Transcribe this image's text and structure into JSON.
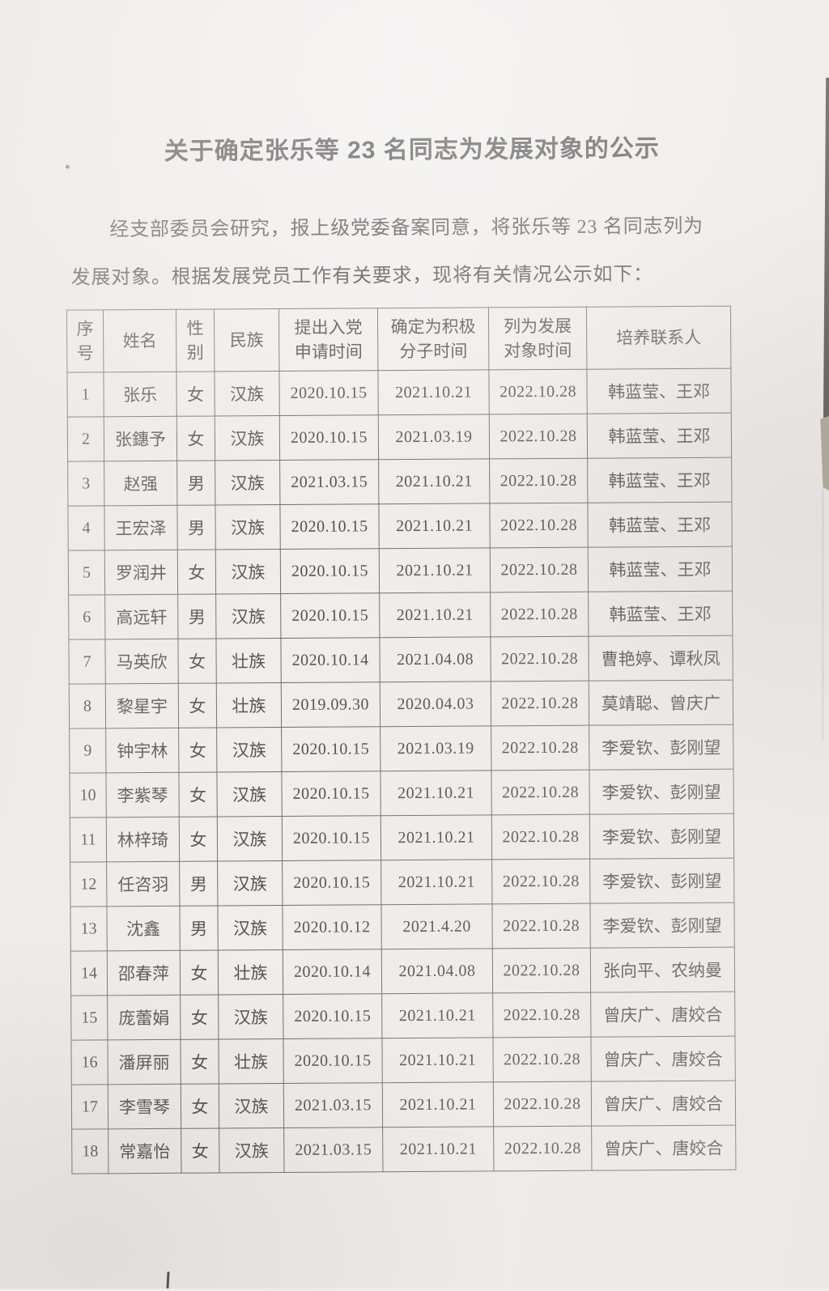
{
  "colors": {
    "paper": "#efecea",
    "ink": "#34302e",
    "table_border": "#5a5450",
    "edge_dark": "#191a1c",
    "edge_tan": "#8e8774"
  },
  "document": {
    "title": "关于确定张乐等 23 名同志为发展对象的公示",
    "paragraph_lines": [
      "经支部委员会研究，报上级党委备案同意，将张乐等 23 名同志列为",
      "发展对象。根据发展党员工作有关要求，现将有关情况公示如下："
    ]
  },
  "table": {
    "columns": [
      {
        "id": "xuhao",
        "lines": [
          "序",
          "号"
        ]
      },
      {
        "id": "xingming",
        "lines": [
          "姓名"
        ]
      },
      {
        "id": "xingbie",
        "lines": [
          "性",
          "别"
        ]
      },
      {
        "id": "minzu",
        "lines": [
          "民族"
        ]
      },
      {
        "id": "shenqing-shijian",
        "lines": [
          "提出入党",
          "申请时间"
        ]
      },
      {
        "id": "jiji-fenzi-shijian",
        "lines": [
          "确定为积极",
          "分子时间"
        ]
      },
      {
        "id": "fazhan-duixiang-shijian",
        "lines": [
          "列为发展",
          "对象时间"
        ]
      },
      {
        "id": "peiyang-lianxiren",
        "lines": [
          "培养联系人"
        ]
      }
    ],
    "rows": [
      [
        "1",
        "张乐",
        "女",
        "汉族",
        "2020.10.15",
        "2021.10.21",
        "2022.10.28",
        "韩蓝莹、王邓"
      ],
      [
        "2",
        "张鏸予",
        "女",
        "汉族",
        "2020.10.15",
        "2021.03.19",
        "2022.10.28",
        "韩蓝莹、王邓"
      ],
      [
        "3",
        "赵强",
        "男",
        "汉族",
        "2021.03.15",
        "2021.10.21",
        "2022.10.28",
        "韩蓝莹、王邓"
      ],
      [
        "4",
        "王宏泽",
        "男",
        "汉族",
        "2020.10.15",
        "2021.10.21",
        "2022.10.28",
        "韩蓝莹、王邓"
      ],
      [
        "5",
        "罗润井",
        "女",
        "汉族",
        "2020.10.15",
        "2021.10.21",
        "2022.10.28",
        "韩蓝莹、王邓"
      ],
      [
        "6",
        "高远轩",
        "男",
        "汉族",
        "2020.10.15",
        "2021.10.21",
        "2022.10.28",
        "韩蓝莹、王邓"
      ],
      [
        "7",
        "马英欣",
        "女",
        "壮族",
        "2020.10.14",
        "2021.04.08",
        "2022.10.28",
        "曹艳婷、谭秋凤"
      ],
      [
        "8",
        "黎星宇",
        "女",
        "壮族",
        "2019.09.30",
        "2020.04.03",
        "2022.10.28",
        "莫靖聪、曾庆广"
      ],
      [
        "9",
        "钟宇林",
        "女",
        "汉族",
        "2020.10.15",
        "2021.03.19",
        "2022.10.28",
        "李爱钦、彭刚望"
      ],
      [
        "10",
        "李紫琴",
        "女",
        "汉族",
        "2020.10.15",
        "2021.10.21",
        "2022.10.28",
        "李爱钦、彭刚望"
      ],
      [
        "11",
        "林梓琦",
        "女",
        "汉族",
        "2020.10.15",
        "2021.10.21",
        "2022.10.28",
        "李爱钦、彭刚望"
      ],
      [
        "12",
        "任咨羽",
        "男",
        "汉族",
        "2020.10.15",
        "2021.10.21",
        "2022.10.28",
        "李爱钦、彭刚望"
      ],
      [
        "13",
        "沈鑫",
        "男",
        "汉族",
        "2020.10.12",
        "2021.4.20",
        "2022.10.28",
        "李爱钦、彭刚望"
      ],
      [
        "14",
        "邵春萍",
        "女",
        "壮族",
        "2020.10.14",
        "2021.04.08",
        "2022.10.28",
        "张向平、农纳曼"
      ],
      [
        "15",
        "庞蕾娟",
        "女",
        "汉族",
        "2020.10.15",
        "2021.10.21",
        "2022.10.28",
        "曾庆广、唐姣合"
      ],
      [
        "16",
        "潘屏丽",
        "女",
        "壮族",
        "2020.10.15",
        "2021.10.21",
        "2022.10.28",
        "曾庆广、唐姣合"
      ],
      [
        "17",
        "李雪琴",
        "女",
        "汉族",
        "2021.03.15",
        "2021.10.21",
        "2022.10.28",
        "曾庆广、唐姣合"
      ],
      [
        "18",
        "常嘉怡",
        "女",
        "汉族",
        "2021.03.15",
        "2021.10.21",
        "2022.10.28",
        "曾庆广、唐姣合"
      ]
    ]
  }
}
